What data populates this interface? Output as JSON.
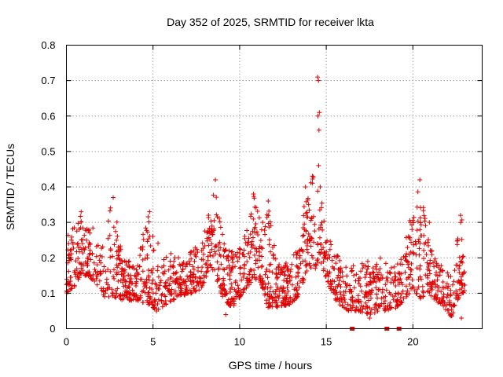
{
  "chart_data": {
    "type": "scatter",
    "title": "Day 352 of 2025, SRMTID for receiver lkta",
    "xlabel": "GPS time / hours",
    "ylabel": "SRMTID / TECUs",
    "xlim": [
      0,
      24
    ],
    "ylim": [
      0,
      0.8
    ],
    "xticks": [
      0,
      5,
      10,
      15,
      20
    ],
    "yticks": [
      0,
      0.1,
      0.2,
      0.3,
      0.4,
      0.5,
      0.6,
      0.7,
      0.8
    ],
    "xtick_labels": [
      "0",
      "5",
      "10",
      "15",
      "20"
    ],
    "ytick_labels": [
      "0",
      "0.1",
      "0.2",
      "0.3",
      "0.4",
      "0.5",
      "0.6",
      "0.7",
      "0.8"
    ],
    "grid": true,
    "marker": "plus",
    "color": "#e00000",
    "envelope": [
      [
        0.0,
        0.1,
        0.28
      ],
      [
        0.5,
        0.12,
        0.3
      ],
      [
        0.8,
        0.15,
        0.33
      ],
      [
        1.2,
        0.15,
        0.3
      ],
      [
        1.7,
        0.13,
        0.3
      ],
      [
        2.2,
        0.09,
        0.28
      ],
      [
        2.7,
        0.09,
        0.37
      ],
      [
        3.2,
        0.08,
        0.22
      ],
      [
        4.0,
        0.08,
        0.17
      ],
      [
        4.7,
        0.07,
        0.33
      ],
      [
        5.2,
        0.05,
        0.26
      ],
      [
        5.8,
        0.07,
        0.22
      ],
      [
        6.5,
        0.09,
        0.2
      ],
      [
        7.2,
        0.1,
        0.22
      ],
      [
        7.8,
        0.11,
        0.26
      ],
      [
        8.3,
        0.18,
        0.34
      ],
      [
        8.6,
        0.15,
        0.42
      ],
      [
        9.0,
        0.08,
        0.27
      ],
      [
        9.6,
        0.06,
        0.22
      ],
      [
        10.2,
        0.1,
        0.25
      ],
      [
        10.8,
        0.14,
        0.38
      ],
      [
        11.3,
        0.12,
        0.3
      ],
      [
        11.6,
        0.06,
        0.36
      ],
      [
        12.2,
        0.06,
        0.18
      ],
      [
        13.0,
        0.07,
        0.2
      ],
      [
        13.5,
        0.1,
        0.25
      ],
      [
        13.8,
        0.15,
        0.4
      ],
      [
        14.3,
        0.16,
        0.45
      ],
      [
        14.6,
        0.2,
        0.4
      ],
      [
        15.0,
        0.14,
        0.3
      ],
      [
        15.5,
        0.08,
        0.22
      ],
      [
        16.2,
        0.05,
        0.17
      ],
      [
        16.8,
        0.05,
        0.19
      ],
      [
        17.5,
        0.04,
        0.2
      ],
      [
        18.2,
        0.05,
        0.2
      ],
      [
        18.8,
        0.05,
        0.17
      ],
      [
        19.3,
        0.07,
        0.2
      ],
      [
        19.8,
        0.1,
        0.3
      ],
      [
        20.4,
        0.08,
        0.42
      ],
      [
        20.8,
        0.1,
        0.3
      ],
      [
        21.3,
        0.08,
        0.2
      ],
      [
        21.8,
        0.06,
        0.17
      ],
      [
        22.3,
        0.03,
        0.15
      ],
      [
        22.7,
        0.1,
        0.32
      ],
      [
        23.0,
        0.1,
        0.3
      ]
    ],
    "outliers": [
      [
        14.55,
        0.7
      ],
      [
        14.5,
        0.71
      ],
      [
        14.6,
        0.61
      ],
      [
        14.52,
        0.6
      ],
      [
        14.58,
        0.56
      ],
      [
        14.56,
        0.46
      ],
      [
        14.65,
        0.4
      ],
      [
        13.8,
        0.4
      ],
      [
        8.6,
        0.42
      ],
      [
        20.4,
        0.42
      ],
      [
        10.8,
        0.38
      ],
      [
        2.7,
        0.37
      ],
      [
        11.65,
        0.36
      ],
      [
        4.8,
        0.33
      ],
      [
        22.75,
        0.32
      ],
      [
        0.85,
        0.33
      ],
      [
        20.95,
        0.3
      ],
      [
        19.85,
        0.3
      ],
      [
        5.2,
        0.05
      ],
      [
        9.2,
        0.04
      ],
      [
        22.8,
        0.03
      ],
      [
        17.5,
        0.03
      ],
      [
        5.0,
        0.06
      ]
    ],
    "zero_values": [
      16.5,
      18.5,
      19.2
    ],
    "point_count": 1800
  }
}
